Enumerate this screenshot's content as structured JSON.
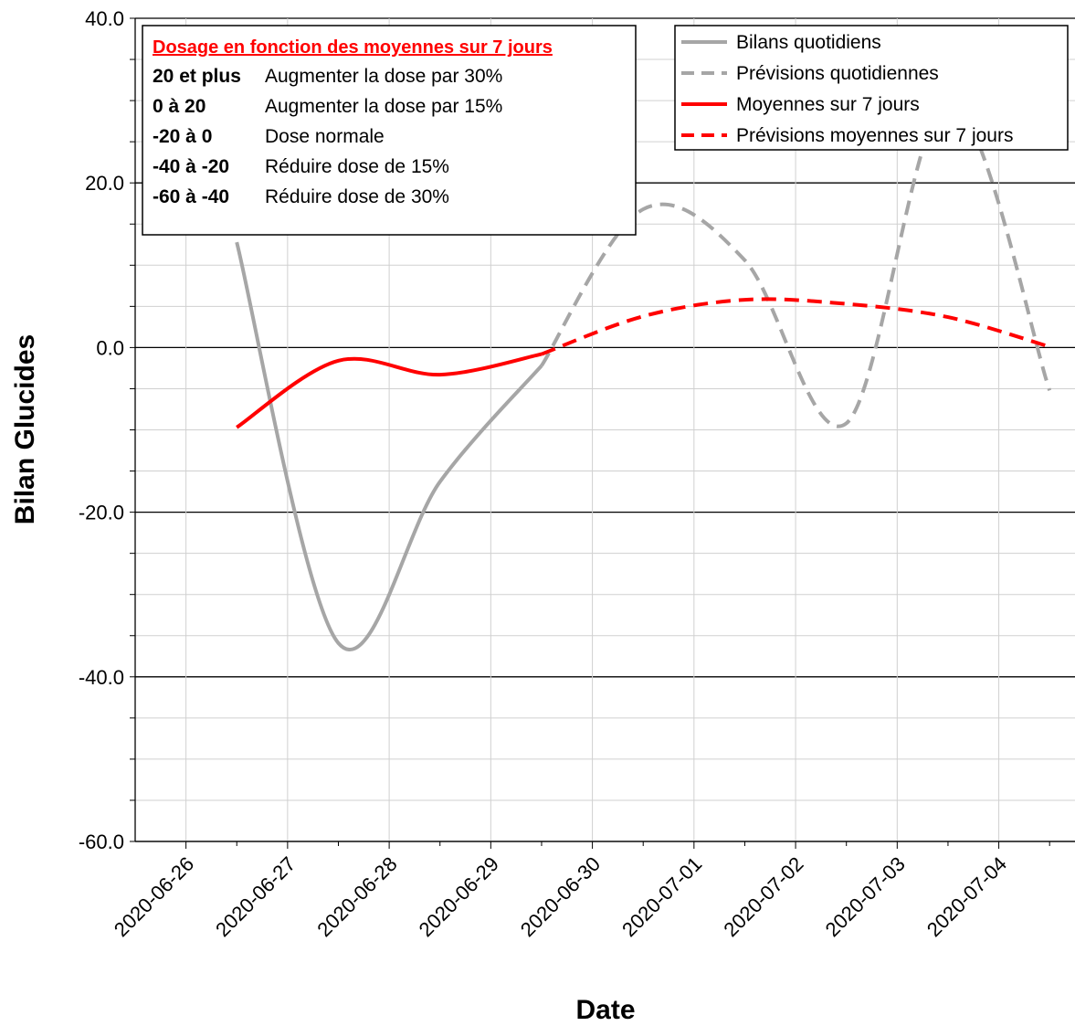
{
  "chart_data": {
    "type": "line",
    "title": "",
    "xlabel": "Date",
    "ylabel": "Bilan Glucides",
    "x_tick_labels": [
      "2020-06-26",
      "2020-06-27",
      "2020-06-28",
      "2020-06-29",
      "2020-06-30",
      "2020-07-01",
      "2020-07-02",
      "2020-07-03",
      "2020-07-04"
    ],
    "y_tick_labels": [
      "40.0",
      "20.0",
      "0.0",
      "-20.0",
      "-40.0",
      "-60.0"
    ],
    "ylim": [
      -60,
      40
    ],
    "xlim": [
      "2020-06-25 12:00",
      "2020-07-04 18:00"
    ],
    "grid": true,
    "legend_position": "top-right",
    "series": [
      {
        "name": "Bilans quotidiens",
        "style": "solid",
        "color": "#a6a6a6",
        "x": [
          "2020-06-26 12:00",
          "2020-06-27 12:00",
          "2020-06-28 12:00",
          "2020-06-29 12:00"
        ],
        "y": [
          12.8,
          -35.9,
          -16.3,
          -2.2
        ]
      },
      {
        "name": "Prévisions quotidiennes",
        "style": "dashed",
        "color": "#a6a6a6",
        "x": [
          "2020-06-29 12:00",
          "2020-06-30 12:00",
          "2020-07-01 12:00",
          "2020-07-02 12:00",
          "2020-07-03 12:00",
          "2020-07-04 12:00"
        ],
        "y": [
          -2.2,
          16.8,
          10.6,
          -9.2,
          30.0,
          -5.2
        ]
      },
      {
        "name": "Moyennes sur 7 jours",
        "style": "solid",
        "color": "#ff0000",
        "x": [
          "2020-06-26 12:00",
          "2020-06-27 12:00",
          "2020-06-28 12:00",
          "2020-06-29 12:00"
        ],
        "y": [
          -9.7,
          -1.6,
          -3.3,
          -0.8
        ]
      },
      {
        "name": "Prévisions moyennes sur 7 jours",
        "style": "dashed",
        "color": "#ff0000",
        "x": [
          "2020-06-29 12:00",
          "2020-06-30 12:00",
          "2020-07-01 12:00",
          "2020-07-02 12:00",
          "2020-07-03 12:00",
          "2020-07-04 12:00"
        ],
        "y": [
          -0.8,
          3.8,
          5.8,
          5.3,
          3.7,
          0.1
        ]
      }
    ],
    "annotation_box": {
      "title": "Dosage en fonction des moyennes sur 7 jours",
      "rules": [
        {
          "range": "20 et plus",
          "action": "Augmenter la dose par 30%"
        },
        {
          "range": "0 à 20",
          "action": "Augmenter la dose par 15%"
        },
        {
          "range": "-20 à 0",
          "action": "Dose normale"
        },
        {
          "range": "-40 à -20",
          "action": "Réduire dose de 15%"
        },
        {
          "range": "-60 à -40",
          "action": "Réduire dose de 30%"
        }
      ]
    }
  }
}
